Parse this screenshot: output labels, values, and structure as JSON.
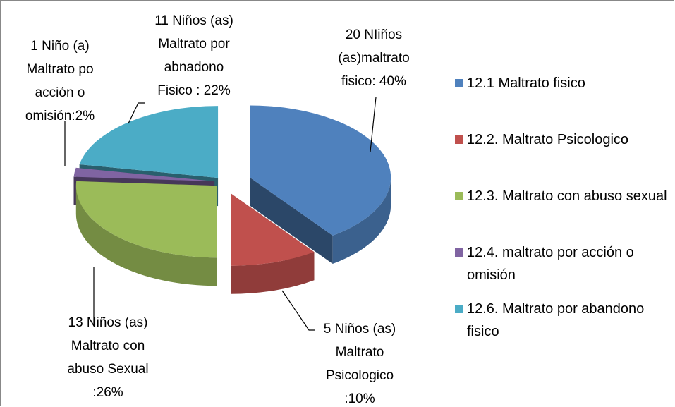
{
  "chart_data": {
    "type": "pie3d",
    "categories": [
      "12.1 Maltrato fisico",
      "12.2. Maltrato Psicologico",
      "12.3. Maltrato con abuso sexual",
      "12.4. maltrato por acción o omisión",
      "12.6. Maltrato por abandono fisico"
    ],
    "values": [
      40,
      10,
      26,
      2,
      22
    ],
    "value_labels": [
      [
        "20  NIiños",
        "(as)maltrato",
        "fisico: 40%"
      ],
      [
        "5 Niños (as)",
        "Maltrato",
        "Psicologico",
        ":10%"
      ],
      [
        "13 Niños (as)",
        "Maltrato con",
        "abuso Sexual",
        ":26%"
      ],
      [
        "1 Niño (a)",
        "Maltrato po",
        "acción o",
        "omisión:2%"
      ],
      [
        "11 Niños (as)",
        "Maltrato por",
        "abnadono",
        "Fisico : 22%"
      ]
    ],
    "colors": [
      "#4f81bd",
      "#c0504d",
      "#9bbb59",
      "#8064a2",
      "#4bacc6"
    ],
    "legend": "right"
  }
}
